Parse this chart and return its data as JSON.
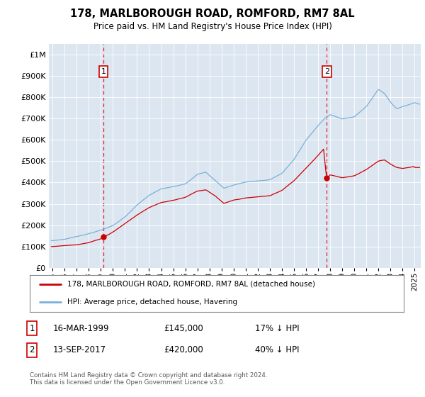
{
  "title": "178, MARLBOROUGH ROAD, ROMFORD, RM7 8AL",
  "subtitle": "Price paid vs. HM Land Registry's House Price Index (HPI)",
  "bg_color": "#dce6f1",
  "hpi_color": "#7ab0d8",
  "price_color": "#cc0000",
  "purchase1_date_num": 1999.21,
  "purchase1_price": 145000,
  "purchase2_date_num": 2017.71,
  "purchase2_price": 420000,
  "legend_label_red": "178, MARLBOROUGH ROAD, ROMFORD, RM7 8AL (detached house)",
  "legend_label_blue": "HPI: Average price, detached house, Havering",
  "table_row1": [
    "1",
    "16-MAR-1999",
    "£145,000",
    "17% ↓ HPI"
  ],
  "table_row2": [
    "2",
    "13-SEP-2017",
    "£420,000",
    "40% ↓ HPI"
  ],
  "footer": "Contains HM Land Registry data © Crown copyright and database right 2024.\nThis data is licensed under the Open Government Licence v3.0.",
  "ylim": [
    0,
    1050000
  ],
  "xlim_start": 1994.7,
  "xlim_end": 2025.5,
  "yticks": [
    0,
    100000,
    200000,
    300000,
    400000,
    500000,
    600000,
    700000,
    800000,
    900000,
    1000000
  ],
  "ytick_labels": [
    "£0",
    "£100K",
    "£200K",
    "£300K",
    "£400K",
    "£500K",
    "£600K",
    "£700K",
    "£800K",
    "£900K",
    "£1M"
  ],
  "xtick_years": [
    1995,
    1996,
    1997,
    1998,
    1999,
    2000,
    2001,
    2002,
    2003,
    2004,
    2005,
    2006,
    2007,
    2008,
    2009,
    2010,
    2011,
    2012,
    2013,
    2014,
    2015,
    2016,
    2017,
    2018,
    2019,
    2020,
    2021,
    2022,
    2023,
    2024,
    2025
  ]
}
